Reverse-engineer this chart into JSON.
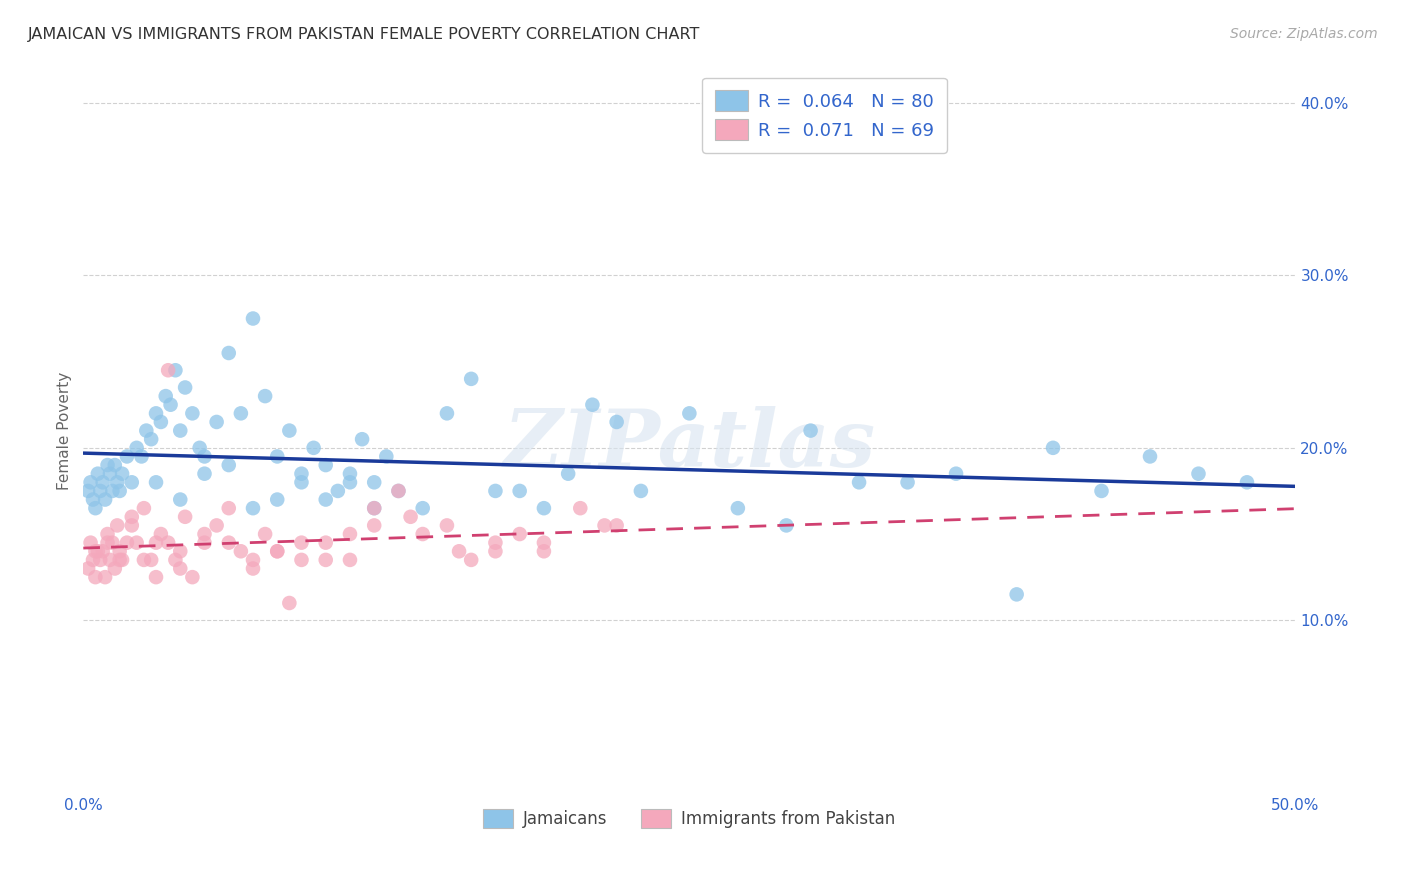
{
  "title": "JAMAICAN VS IMMIGRANTS FROM PAKISTAN FEMALE POVERTY CORRELATION CHART",
  "source": "Source: ZipAtlas.com",
  "ylabel": "Female Poverty",
  "legend_labels": [
    "Jamaicans",
    "Immigrants from Pakistan"
  ],
  "r_values": [
    0.064,
    0.071
  ],
  "n_values": [
    80,
    69
  ],
  "blue_color": "#8ec4e8",
  "pink_color": "#f4a8bc",
  "blue_line_color": "#1a3a9a",
  "pink_line_color": "#d04070",
  "axis_tick_color": "#3366cc",
  "watermark": "ZIPatlas",
  "jamaicans_x": [
    0.2,
    0.3,
    0.4,
    0.5,
    0.6,
    0.7,
    0.8,
    0.9,
    1.0,
    1.1,
    1.2,
    1.3,
    1.4,
    1.5,
    1.6,
    1.8,
    2.0,
    2.2,
    2.4,
    2.6,
    2.8,
    3.0,
    3.2,
    3.4,
    3.6,
    3.8,
    4.0,
    4.2,
    4.5,
    4.8,
    5.0,
    5.5,
    6.0,
    6.5,
    7.0,
    7.5,
    8.0,
    8.5,
    9.0,
    9.5,
    10.0,
    10.5,
    11.0,
    11.5,
    12.0,
    12.5,
    13.0,
    14.0,
    15.0,
    16.0,
    17.0,
    18.0,
    19.0,
    20.0,
    21.0,
    22.0,
    23.0,
    25.0,
    27.0,
    29.0,
    30.0,
    32.0,
    34.0,
    36.0,
    38.5,
    40.0,
    42.0,
    44.0,
    46.0,
    48.0,
    3.0,
    4.0,
    5.0,
    6.0,
    7.0,
    8.0,
    9.0,
    10.0,
    11.0,
    12.0
  ],
  "jamaicans_y": [
    17.5,
    18.0,
    17.0,
    16.5,
    18.5,
    17.5,
    18.0,
    17.0,
    19.0,
    18.5,
    17.5,
    19.0,
    18.0,
    17.5,
    18.5,
    19.5,
    18.0,
    20.0,
    19.5,
    21.0,
    20.5,
    22.0,
    21.5,
    23.0,
    22.5,
    24.5,
    21.0,
    23.5,
    22.0,
    20.0,
    19.5,
    21.5,
    25.5,
    22.0,
    27.5,
    23.0,
    19.5,
    21.0,
    18.5,
    20.0,
    19.0,
    17.5,
    18.5,
    20.5,
    18.0,
    19.5,
    17.5,
    16.5,
    22.0,
    24.0,
    17.5,
    17.5,
    16.5,
    18.5,
    22.5,
    21.5,
    17.5,
    22.0,
    16.5,
    15.5,
    21.0,
    18.0,
    18.0,
    18.5,
    11.5,
    20.0,
    17.5,
    19.5,
    18.5,
    18.0,
    18.0,
    17.0,
    18.5,
    19.0,
    16.5,
    17.0,
    18.0,
    17.0,
    18.0,
    16.5
  ],
  "pakistan_x": [
    0.2,
    0.3,
    0.4,
    0.5,
    0.6,
    0.7,
    0.8,
    0.9,
    1.0,
    1.1,
    1.2,
    1.3,
    1.4,
    1.5,
    1.6,
    1.8,
    2.0,
    2.2,
    2.5,
    2.8,
    3.0,
    3.2,
    3.5,
    3.8,
    4.0,
    4.2,
    4.5,
    5.0,
    5.5,
    6.0,
    6.5,
    7.0,
    7.5,
    8.0,
    8.5,
    9.0,
    10.0,
    11.0,
    12.0,
    13.0,
    14.0,
    15.0,
    16.0,
    17.0,
    18.0,
    19.0,
    20.5,
    22.0,
    0.5,
    1.0,
    1.5,
    2.0,
    2.5,
    3.0,
    3.5,
    4.0,
    5.0,
    6.0,
    7.0,
    8.0,
    9.0,
    10.0,
    11.0,
    12.0,
    13.5,
    15.5,
    17.0,
    19.0,
    21.5
  ],
  "pakistan_y": [
    13.0,
    14.5,
    13.5,
    12.5,
    14.0,
    13.5,
    14.0,
    12.5,
    15.0,
    13.5,
    14.5,
    13.0,
    15.5,
    14.0,
    13.5,
    14.5,
    15.5,
    14.5,
    16.5,
    13.5,
    14.5,
    15.0,
    24.5,
    13.5,
    14.0,
    16.0,
    12.5,
    14.5,
    15.5,
    16.5,
    14.0,
    13.5,
    15.0,
    14.0,
    11.0,
    14.5,
    13.5,
    15.0,
    16.5,
    17.5,
    15.0,
    15.5,
    13.5,
    14.0,
    15.0,
    14.5,
    16.5,
    15.5,
    14.0,
    14.5,
    13.5,
    16.0,
    13.5,
    12.5,
    14.5,
    13.0,
    15.0,
    14.5,
    13.0,
    14.0,
    13.5,
    14.5,
    13.5,
    15.5,
    16.0,
    14.0,
    14.5,
    14.0,
    15.5
  ],
  "xlim": [
    0,
    50
  ],
  "ylim": [
    0,
    42
  ],
  "yticks": [
    10,
    20,
    30,
    40
  ],
  "ytick_labels": [
    "10.0%",
    "20.0%",
    "30.0%",
    "40.0%"
  ],
  "xticks": [
    0,
    10,
    20,
    30,
    40,
    50
  ],
  "xtick_labels": [
    "0.0%",
    "",
    "",
    "",
    "",
    "50.0%"
  ],
  "grid_color": "#cccccc",
  "bg_color": "#ffffff"
}
